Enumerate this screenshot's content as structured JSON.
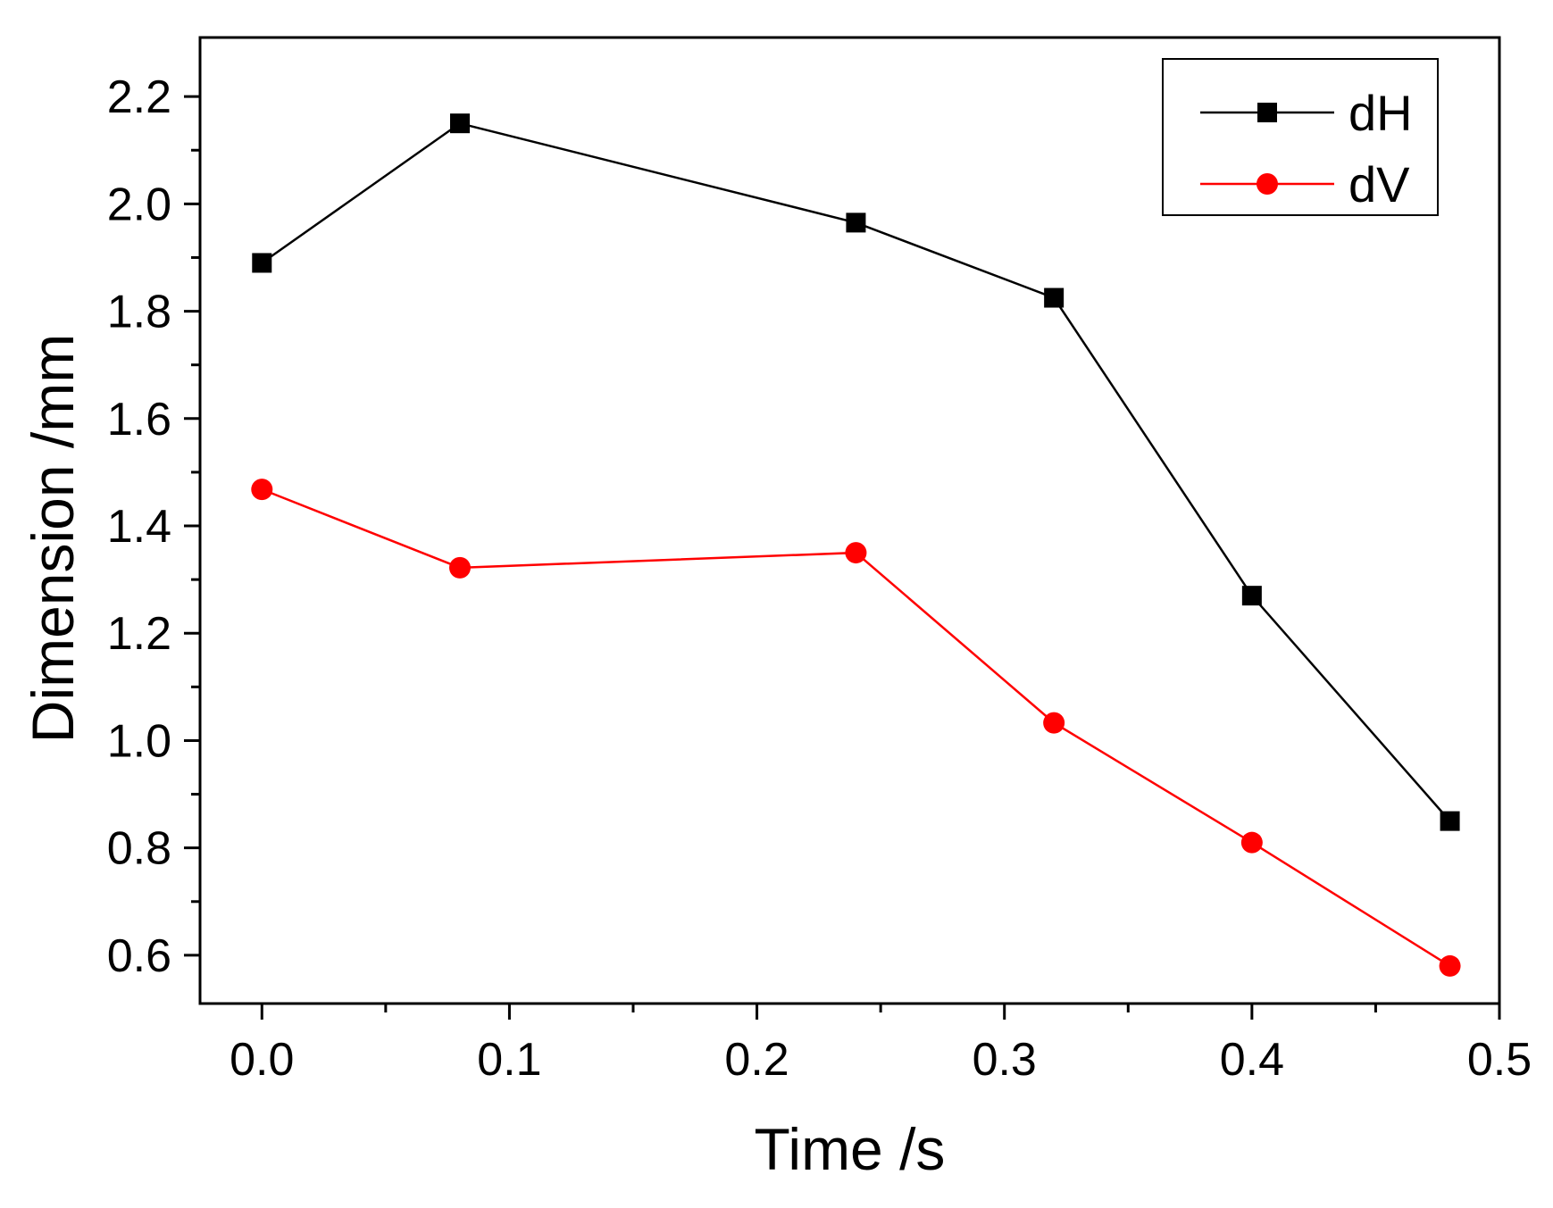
{
  "chart_data": {
    "type": "line",
    "title": "",
    "xlabel": "Time /s",
    "ylabel": "Dimension /mm",
    "xlim": [
      -0.025,
      0.5
    ],
    "ylim": [
      0.51,
      2.31
    ],
    "x_ticks": [
      0.0,
      0.1,
      0.2,
      0.3,
      0.4,
      0.5
    ],
    "x_tick_labels": [
      "0.0",
      "0.1",
      "0.2",
      "0.3",
      "0.4",
      "0.5"
    ],
    "x_minor_ticks": [
      0.05,
      0.15,
      0.25,
      0.35,
      0.45
    ],
    "y_ticks": [
      0.6,
      0.8,
      1.0,
      1.2,
      1.4,
      1.6,
      1.8,
      2.0,
      2.2
    ],
    "y_tick_labels": [
      "0.6",
      "0.8",
      "1.0",
      "1.2",
      "1.4",
      "1.6",
      "1.8",
      "2.0",
      "2.2"
    ],
    "y_minor_ticks": [
      0.7,
      0.9,
      1.1,
      1.3,
      1.5,
      1.7,
      1.9,
      2.1
    ],
    "grid": false,
    "legend_position": "top-right",
    "series": [
      {
        "name": "dH",
        "color": "#000000",
        "marker": "square",
        "x": [
          0.0,
          0.08,
          0.24,
          0.32,
          0.4,
          0.48
        ],
        "y": [
          1.89,
          2.15,
          1.965,
          1.825,
          1.27,
          0.85
        ]
      },
      {
        "name": "dV",
        "color": "#ff0000",
        "marker": "circle",
        "x": [
          0.0,
          0.08,
          0.24,
          0.32,
          0.4,
          0.48
        ],
        "y": [
          1.468,
          1.322,
          1.35,
          1.033,
          0.81,
          0.58
        ]
      }
    ]
  }
}
